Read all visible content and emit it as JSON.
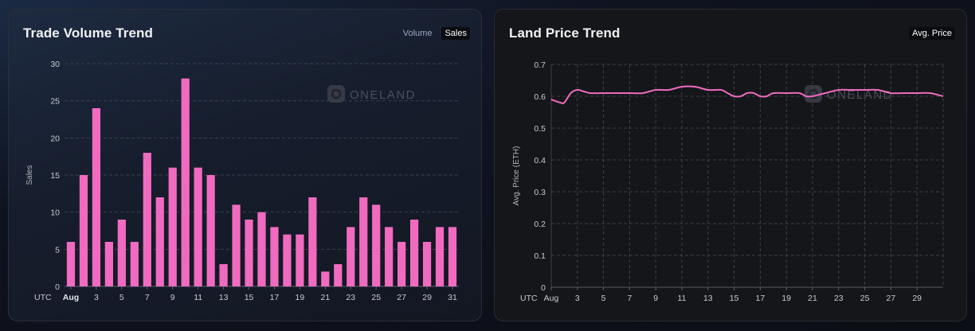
{
  "watermark": "ONELAND",
  "colors": {
    "accent": "#f06bbf"
  },
  "volume_card": {
    "title": "Trade Volume Trend",
    "legend": [
      {
        "label": "Volume",
        "active": false
      },
      {
        "label": "Sales",
        "active": true
      }
    ]
  },
  "price_card": {
    "title": "Land Price Trend",
    "legend": [
      {
        "label": "Avg. Price",
        "active": true
      }
    ]
  },
  "chart_data": [
    {
      "type": "bar",
      "title": "Trade Volume Trend",
      "series_name": "Sales",
      "ylabel": "Sales",
      "timezone_label": "UTC",
      "ylim": [
        0,
        30
      ],
      "yticks": [
        0,
        5,
        10,
        15,
        20,
        25,
        30
      ],
      "categories": [
        "1",
        "2",
        "3",
        "4",
        "5",
        "6",
        "7",
        "8",
        "9",
        "10",
        "11",
        "12",
        "13",
        "14",
        "15",
        "16",
        "17",
        "18",
        "19",
        "20",
        "21",
        "22",
        "23",
        "24",
        "25",
        "26",
        "27",
        "28",
        "29",
        "30",
        "31"
      ],
      "values": [
        6,
        15,
        24,
        6,
        9,
        6,
        18,
        12,
        16,
        28,
        16,
        15,
        3,
        11,
        9,
        10,
        8,
        7,
        7,
        12,
        2,
        3,
        8,
        12,
        11,
        8,
        6,
        9,
        6,
        8,
        8
      ],
      "xtick_labels": [
        {
          "day": 1,
          "label": "Aug",
          "bold": true
        },
        {
          "day": 3,
          "label": "3"
        },
        {
          "day": 5,
          "label": "5"
        },
        {
          "day": 7,
          "label": "7"
        },
        {
          "day": 9,
          "label": "9"
        },
        {
          "day": 11,
          "label": "11"
        },
        {
          "day": 13,
          "label": "13"
        },
        {
          "day": 15,
          "label": "15"
        },
        {
          "day": 17,
          "label": "17"
        },
        {
          "day": 19,
          "label": "19"
        },
        {
          "day": 21,
          "label": "21"
        },
        {
          "day": 23,
          "label": "23"
        },
        {
          "day": 25,
          "label": "25"
        },
        {
          "day": 27,
          "label": "27"
        },
        {
          "day": 29,
          "label": "29"
        },
        {
          "day": 31,
          "label": "31"
        }
      ],
      "grid": true
    },
    {
      "type": "line",
      "title": "Land Price Trend",
      "series_name": "Avg. Price",
      "ylabel": "Avg. Price (ETH)",
      "timezone_label": "UTC",
      "ylim": [
        0,
        0.7
      ],
      "yticks": [
        "0",
        "0.1",
        "0.2",
        "0.3",
        "0.4",
        "0.5",
        "0.6",
        "0.7"
      ],
      "x_range": [
        1,
        31
      ],
      "x": [
        1,
        1.7,
        2,
        2.5,
        3,
        3.5,
        4,
        5,
        6,
        7,
        8,
        9,
        10,
        11,
        12,
        13,
        14,
        14.5,
        15,
        15.5,
        16,
        16.5,
        17,
        17.5,
        18,
        19,
        20,
        20.5,
        21,
        21.5,
        22,
        23,
        24,
        25,
        26,
        27,
        28,
        29,
        30,
        31
      ],
      "values": [
        0.59,
        0.58,
        0.58,
        0.61,
        0.62,
        0.615,
        0.61,
        0.61,
        0.61,
        0.61,
        0.61,
        0.62,
        0.62,
        0.63,
        0.63,
        0.62,
        0.62,
        0.61,
        0.6,
        0.6,
        0.61,
        0.61,
        0.6,
        0.6,
        0.61,
        0.61,
        0.61,
        0.6,
        0.6,
        0.605,
        0.61,
        0.62,
        0.62,
        0.62,
        0.62,
        0.61,
        0.61,
        0.61,
        0.61,
        0.6
      ],
      "xtick_labels": [
        {
          "day": 1,
          "label": "Aug"
        },
        {
          "day": 3,
          "label": "3"
        },
        {
          "day": 5,
          "label": "5"
        },
        {
          "day": 7,
          "label": "7"
        },
        {
          "day": 9,
          "label": "9"
        },
        {
          "day": 11,
          "label": "11"
        },
        {
          "day": 13,
          "label": "13"
        },
        {
          "day": 15,
          "label": "15"
        },
        {
          "day": 17,
          "label": "17"
        },
        {
          "day": 19,
          "label": "19"
        },
        {
          "day": 21,
          "label": "21"
        },
        {
          "day": 23,
          "label": "23"
        },
        {
          "day": 25,
          "label": "25"
        },
        {
          "day": 27,
          "label": "27"
        },
        {
          "day": 29,
          "label": "29"
        }
      ],
      "grid": true
    }
  ]
}
